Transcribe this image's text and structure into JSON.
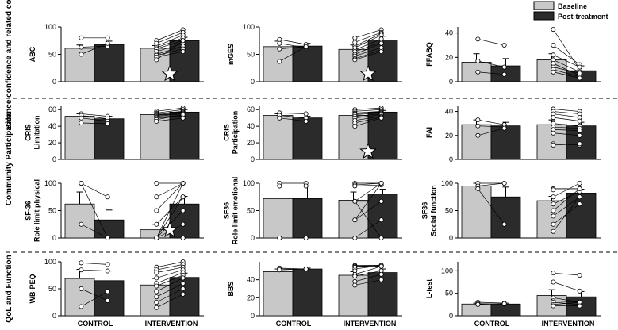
{
  "colors": {
    "baseline": "#c8c8c8",
    "post": "#2b2b2b",
    "dots": "#ffffff",
    "star": "#ffffff"
  },
  "legend": {
    "baseline": "Baseline",
    "post": "Post-treatment"
  },
  "row_groups": [
    "Balance confidence and related constructs",
    "Community Participation",
    "QoL and Function"
  ],
  "x_categories": [
    "CONTROL",
    "INTERVENTION"
  ],
  "chart_data": [
    {
      "type": "bar",
      "ylabel": [
        "ABC"
      ],
      "ylim": [
        0,
        100
      ],
      "yticks": [
        0,
        50,
        100
      ],
      "series": [
        {
          "name": "Baseline",
          "values": [
            61,
            61
          ]
        },
        {
          "name": "Post-treatment",
          "values": [
            68,
            75
          ]
        }
      ],
      "errors": [
        [
          6,
          5
        ],
        [
          6,
          6
        ]
      ],
      "control_lines": [
        [
          80,
          80
        ],
        [
          63,
          65
        ],
        [
          50,
          70
        ]
      ],
      "intervention_lines": [
        [
          75,
          95
        ],
        [
          70,
          90
        ],
        [
          65,
          85
        ],
        [
          62,
          80
        ],
        [
          60,
          75
        ],
        [
          55,
          70
        ],
        [
          50,
          65
        ],
        [
          48,
          60
        ],
        [
          45,
          55
        ],
        [
          40,
          75
        ]
      ],
      "star": true
    },
    {
      "type": "bar",
      "ylabel": [
        "mGES"
      ],
      "ylim": [
        0,
        100
      ],
      "yticks": [
        0,
        50,
        100
      ],
      "series": [
        {
          "name": "Baseline",
          "values": [
            64,
            59
          ]
        },
        {
          "name": "Post-treatment",
          "values": [
            65,
            76
          ]
        }
      ],
      "errors": [
        [
          10,
          8
        ],
        [
          5,
          7
        ]
      ],
      "control_lines": [
        [
          77,
          68
        ],
        [
          70,
          62
        ],
        [
          60,
          64
        ],
        [
          37,
          64
        ]
      ],
      "intervention_lines": [
        [
          80,
          95
        ],
        [
          72,
          90
        ],
        [
          65,
          88
        ],
        [
          62,
          85
        ],
        [
          58,
          78
        ],
        [
          55,
          72
        ],
        [
          50,
          70
        ],
        [
          47,
          62
        ],
        [
          42,
          58
        ],
        [
          40,
          55
        ]
      ],
      "star": true
    },
    {
      "type": "bar",
      "ylabel": [
        "FFABQ"
      ],
      "ylim": [
        0,
        45
      ],
      "yticks": [
        0,
        20,
        40
      ],
      "series": [
        {
          "name": "Baseline",
          "values": [
            16,
            18
          ]
        },
        {
          "name": "Post-treatment",
          "values": [
            13,
            9
          ]
        }
      ],
      "errors": [
        [
          7,
          5
        ],
        [
          6,
          4
        ]
      ],
      "control_lines": [
        [
          35,
          30
        ],
        [
          17,
          12
        ],
        [
          8,
          6
        ]
      ],
      "intervention_lines": [
        [
          43,
          10
        ],
        [
          30,
          14
        ],
        [
          22,
          12
        ],
        [
          18,
          8
        ],
        [
          15,
          5
        ],
        [
          12,
          7
        ],
        [
          10,
          4
        ],
        [
          8,
          3
        ]
      ],
      "star": false
    },
    {
      "type": "bar",
      "ylabel": [
        "CRIS",
        "Limitation"
      ],
      "ylim": [
        0,
        65
      ],
      "yticks": [
        0,
        20,
        40,
        60
      ],
      "series": [
        {
          "name": "Baseline",
          "values": [
            52,
            54
          ]
        },
        {
          "name": "Post-treatment",
          "values": [
            49,
            57
          ]
        }
      ],
      "errors": [
        [
          3,
          2
        ],
        [
          3,
          3
        ]
      ],
      "control_lines": [
        [
          55,
          52
        ],
        [
          53,
          49
        ],
        [
          50,
          46
        ],
        [
          44,
          43
        ]
      ],
      "intervention_lines": [
        [
          58,
          62
        ],
        [
          56,
          60
        ],
        [
          55,
          58
        ],
        [
          54,
          57
        ],
        [
          53,
          56
        ],
        [
          52,
          55
        ],
        [
          51,
          53
        ],
        [
          50,
          52
        ],
        [
          48,
          54
        ],
        [
          46,
          50
        ]
      ],
      "star": false
    },
    {
      "type": "bar",
      "ylabel": [
        "CRIS",
        "Participation"
      ],
      "ylim": [
        0,
        65
      ],
      "yticks": [
        0,
        20,
        40,
        60
      ],
      "series": [
        {
          "name": "Baseline",
          "values": [
            53,
            53
          ]
        },
        {
          "name": "Post-treatment",
          "values": [
            50,
            57
          ]
        }
      ],
      "errors": [
        [
          2,
          3
        ],
        [
          2,
          2
        ]
      ],
      "control_lines": [
        [
          56,
          55
        ],
        [
          53,
          50
        ],
        [
          50,
          46
        ]
      ],
      "intervention_lines": [
        [
          60,
          62
        ],
        [
          58,
          60
        ],
        [
          56,
          58
        ],
        [
          55,
          57
        ],
        [
          54,
          56
        ],
        [
          52,
          55
        ],
        [
          50,
          54
        ],
        [
          47,
          52
        ],
        [
          44,
          51
        ],
        [
          40,
          50
        ]
      ],
      "star": true
    },
    {
      "type": "bar",
      "ylabel": [
        "FAI"
      ],
      "ylim": [
        0,
        45
      ],
      "yticks": [
        0,
        20,
        40
      ],
      "series": [
        {
          "name": "Baseline",
          "values": [
            29,
            29
          ]
        },
        {
          "name": "Post-treatment",
          "values": [
            28,
            28
          ]
        }
      ],
      "errors": [
        [
          4,
          4
        ],
        [
          3,
          3
        ]
      ],
      "control_lines": [
        [
          33,
          29
        ],
        [
          28,
          27
        ],
        [
          20,
          26
        ]
      ],
      "intervention_lines": [
        [
          42,
          40
        ],
        [
          40,
          38
        ],
        [
          38,
          35
        ],
        [
          35,
          32
        ],
        [
          30,
          28
        ],
        [
          27,
          26
        ],
        [
          25,
          24
        ],
        [
          22,
          20
        ],
        [
          13,
          12
        ],
        [
          12,
          13
        ]
      ],
      "star": false
    },
    {
      "type": "bar",
      "ylabel": [
        "SF-36",
        "Role limit physical"
      ],
      "ylim": [
        0,
        100
      ],
      "yticks": [
        0,
        50,
        100
      ],
      "series": [
        {
          "name": "Baseline",
          "values": [
            62,
            15
          ]
        },
        {
          "name": "Post-treatment",
          "values": [
            33,
            62
          ]
        }
      ],
      "errors": [
        [
          22,
          10
        ],
        [
          18,
          14
        ]
      ],
      "control_lines": [
        [
          100,
          75
        ],
        [
          100,
          0
        ],
        [
          25,
          0
        ]
      ],
      "intervention_lines": [
        [
          100,
          100
        ],
        [
          75,
          100
        ],
        [
          50,
          100
        ],
        [
          25,
          75
        ],
        [
          0,
          100
        ],
        [
          0,
          75
        ],
        [
          0,
          50
        ],
        [
          0,
          25
        ],
        [
          0,
          0
        ]
      ],
      "star": true
    },
    {
      "type": "bar",
      "ylabel": [
        "SF36",
        "Role limit emotional"
      ],
      "ylim": [
        0,
        100
      ],
      "yticks": [
        0,
        50,
        100
      ],
      "series": [
        {
          "name": "Baseline",
          "values": [
            72,
            69
          ]
        },
        {
          "name": "Post-treatment",
          "values": [
            72,
            80
          ]
        }
      ],
      "errors": [
        [
          23,
          15
        ],
        [
          23,
          9
        ]
      ],
      "control_lines": [
        [
          100,
          100
        ],
        [
          95,
          95
        ],
        [
          0,
          0
        ]
      ],
      "intervention_lines": [
        [
          100,
          100
        ],
        [
          97,
          100
        ],
        [
          95,
          97
        ],
        [
          67,
          100
        ],
        [
          33,
          100
        ],
        [
          33,
          67
        ],
        [
          67,
          67
        ],
        [
          0,
          33
        ],
        [
          67,
          0
        ]
      ],
      "star": false
    },
    {
      "type": "bar",
      "ylabel": [
        "SF36",
        "Social function"
      ],
      "ylim": [
        0,
        100
      ],
      "yticks": [
        0,
        50,
        100
      ],
      "series": [
        {
          "name": "Baseline",
          "values": [
            95,
            68
          ]
        },
        {
          "name": "Post-treatment",
          "values": [
            75,
            82
          ]
        }
      ],
      "errors": [
        [
          5,
          8
        ],
        [
          18,
          7
        ]
      ],
      "control_lines": [
        [
          100,
          100
        ],
        [
          95,
          100
        ],
        [
          90,
          25
        ]
      ],
      "intervention_lines": [
        [
          90,
          90
        ],
        [
          88,
          88
        ],
        [
          75,
          100
        ],
        [
          62,
          85
        ],
        [
          50,
          90
        ],
        [
          40,
          75
        ],
        [
          25,
          62
        ],
        [
          12,
          75
        ]
      ],
      "star": false
    },
    {
      "type": "bar",
      "ylabel": [
        "WB-PEQ"
      ],
      "ylim": [
        0,
        100
      ],
      "yticks": [
        0,
        50,
        100
      ],
      "series": [
        {
          "name": "Baseline",
          "values": [
            69,
            57
          ]
        },
        {
          "name": "Post-treatment",
          "values": [
            65,
            71
          ]
        }
      ],
      "errors": [
        [
          17,
          12
        ],
        [
          18,
          8
        ]
      ],
      "control_lines": [
        [
          98,
          95
        ],
        [
          85,
          83
        ],
        [
          50,
          28
        ],
        [
          17,
          45
        ]
      ],
      "intervention_lines": [
        [
          90,
          100
        ],
        [
          85,
          95
        ],
        [
          80,
          90
        ],
        [
          70,
          85
        ],
        [
          60,
          80
        ],
        [
          55,
          75
        ],
        [
          45,
          70
        ],
        [
          35,
          60
        ],
        [
          25,
          50
        ],
        [
          15,
          40
        ]
      ],
      "star": false
    },
    {
      "type": "bar",
      "ylabel": [
        "BBS"
      ],
      "ylim": [
        0,
        60
      ],
      "yticks": [
        0,
        20,
        40
      ],
      "series": [
        {
          "name": "Baseline",
          "values": [
            49,
            45
          ]
        },
        {
          "name": "Post-treatment",
          "values": [
            52,
            48
          ]
        }
      ],
      "errors": [
        [
          3,
          4
        ],
        [
          1,
          4
        ]
      ],
      "control_lines": [
        [
          53,
          52
        ],
        [
          52,
          52
        ],
        [
          51,
          52
        ]
      ],
      "intervention_lines": [
        [
          56,
          56
        ],
        [
          55,
          56
        ],
        [
          55,
          55
        ],
        [
          54,
          55
        ],
        [
          52,
          56
        ],
        [
          50,
          50
        ],
        [
          46,
          55
        ],
        [
          44,
          50
        ],
        [
          38,
          46
        ],
        [
          34,
          40
        ]
      ],
      "star": false
    },
    {
      "type": "bar",
      "ylabel": [
        "L-test"
      ],
      "ylim": [
        0,
        120
      ],
      "yticks": [
        0,
        50,
        100
      ],
      "series": [
        {
          "name": "Baseline",
          "values": [
            26,
            45
          ]
        },
        {
          "name": "Post-treatment",
          "values": [
            26,
            42
          ]
        }
      ],
      "errors": [
        [
          2,
          13
        ],
        [
          2,
          12
        ]
      ],
      "control_lines": [
        [
          30,
          28
        ],
        [
          27,
          26
        ],
        [
          25,
          27
        ]
      ],
      "intervention_lines": [
        [
          95,
          90
        ],
        [
          75,
          55
        ],
        [
          40,
          30
        ],
        [
          33,
          30
        ],
        [
          30,
          25
        ],
        [
          25,
          30
        ],
        [
          22,
          22
        ]
      ],
      "star": false
    }
  ]
}
